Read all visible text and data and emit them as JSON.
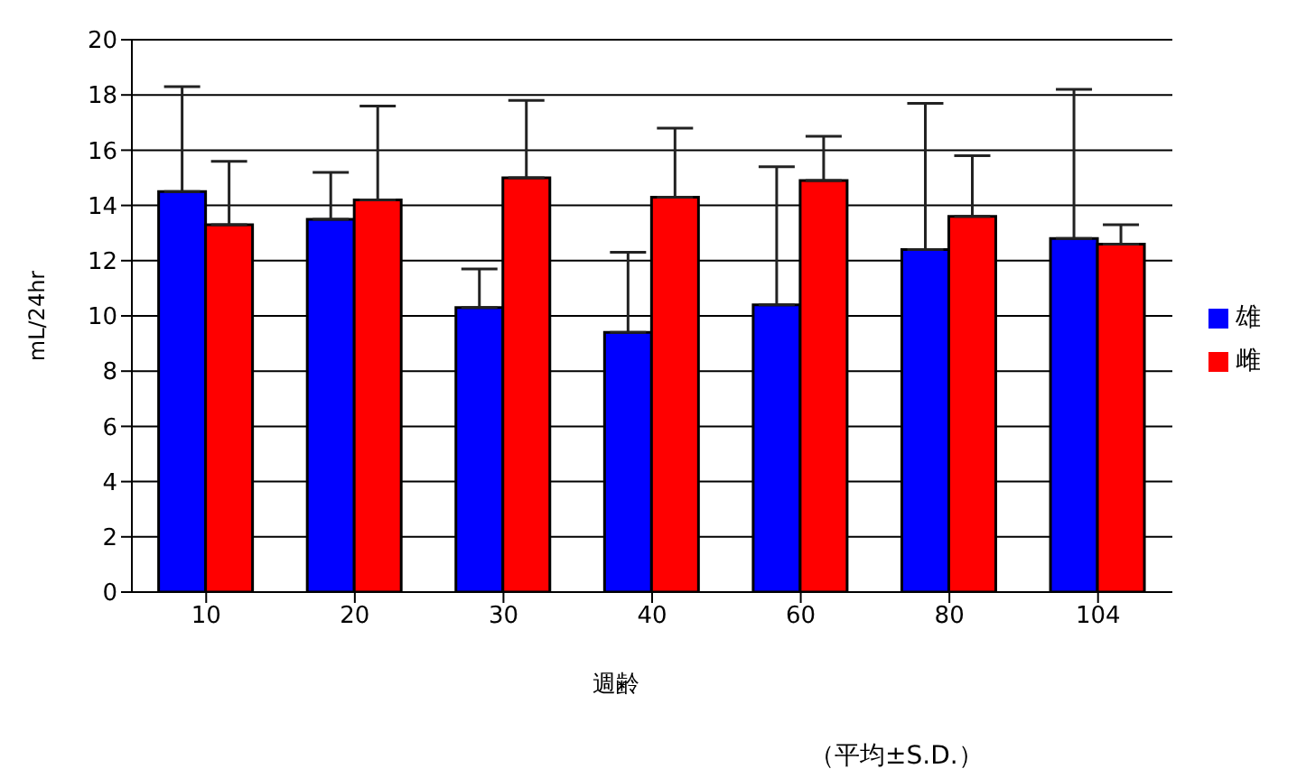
{
  "chart_data": {
    "type": "bar",
    "xlabel": "週齢",
    "ylabel": "mL/24hr",
    "categories": [
      "10",
      "20",
      "30",
      "40",
      "60",
      "80",
      "104"
    ],
    "series": [
      {
        "name": "雄",
        "color": "#0000ff",
        "values": [
          14.5,
          13.5,
          10.3,
          9.4,
          10.4,
          12.4,
          12.8
        ],
        "errors": [
          [
            14.5,
            18.3
          ],
          [
            13.5,
            15.2
          ],
          [
            10.3,
            11.7
          ],
          [
            9.4,
            12.3
          ],
          [
            10.4,
            15.4
          ],
          [
            12.4,
            17.7
          ],
          [
            12.8,
            18.2
          ]
        ]
      },
      {
        "name": "雌",
        "color": "#ff0000",
        "values": [
          13.3,
          14.2,
          15.0,
          14.3,
          14.9,
          13.6,
          12.6
        ],
        "errors": [
          [
            13.3,
            15.6
          ],
          [
            14.2,
            17.6
          ],
          [
            15.0,
            17.8
          ],
          [
            14.3,
            16.8
          ],
          [
            14.9,
            16.5
          ],
          [
            13.6,
            15.8
          ],
          [
            12.6,
            13.3
          ]
        ]
      }
    ],
    "ylim": [
      0,
      20
    ],
    "yticks": [
      0,
      2,
      4,
      6,
      8,
      10,
      12,
      14,
      16,
      18,
      20
    ],
    "grid": "y",
    "legend": "right",
    "annotations": [
      "（平均±S.D.）"
    ]
  }
}
